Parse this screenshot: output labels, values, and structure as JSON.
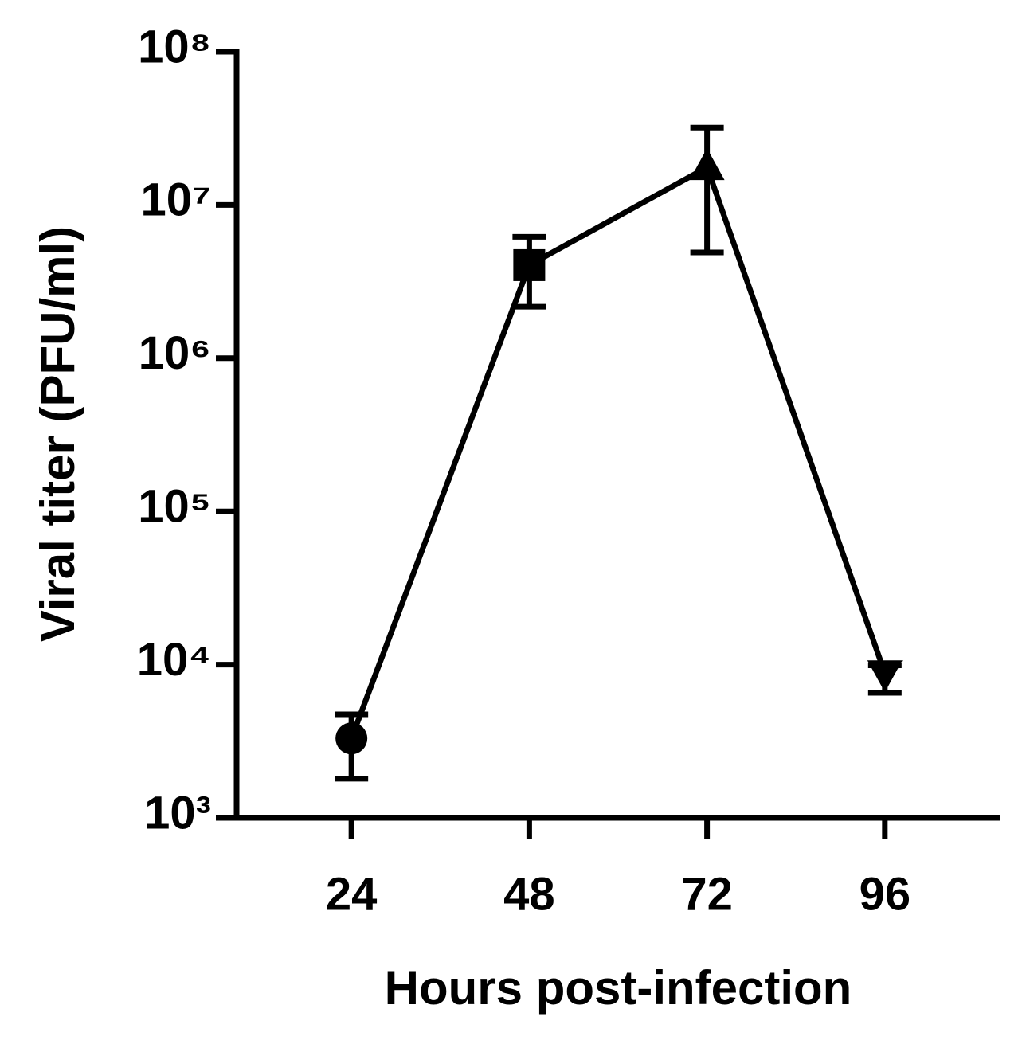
{
  "chart_data": {
    "type": "line",
    "xlabel": "Hours post-infection",
    "ylabel": "Viral titer (PFU/ml)",
    "x": [
      24,
      48,
      72,
      96
    ],
    "values": [
      3300,
      4050000,
      17600000,
      8800
    ],
    "upper": [
      4740,
      6200000,
      32000000,
      9900
    ],
    "lower": [
      1800,
      2170000,
      4900000,
      6550
    ],
    "markers": [
      "circle",
      "square",
      "triangle-up",
      "triangle-down"
    ],
    "color": "#000000",
    "xlim": [
      8.5,
      111.5
    ],
    "xticks": [
      24,
      48,
      72,
      96
    ],
    "ylim": [
      1000,
      100000000
    ],
    "ylog": true,
    "yticks": [
      {
        "value": 1000,
        "label": "10³"
      },
      {
        "value": 10000,
        "label": "10⁴"
      },
      {
        "value": 100000,
        "label": "10⁵"
      },
      {
        "value": 1000000,
        "label": "10⁶"
      },
      {
        "value": 10000000,
        "label": "10⁷"
      },
      {
        "value": 100000000,
        "label": "10⁸"
      }
    ]
  }
}
